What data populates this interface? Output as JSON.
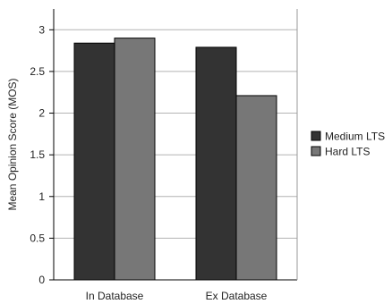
{
  "chart_data": {
    "type": "bar",
    "title": "",
    "xlabel": "",
    "ylabel": "Mean Opinion Score (MOS)",
    "categories": [
      "In Database",
      "Ex Database"
    ],
    "series": [
      {
        "name": "Medium LTS",
        "values": [
          2.84,
          2.79
        ],
        "color": "#333333"
      },
      {
        "name": "Hard LTS",
        "values": [
          2.9,
          2.21
        ],
        "color": "#777777"
      }
    ],
    "ylim": [
      0,
      3.25
    ],
    "yticks": [
      0,
      0.5,
      1,
      1.5,
      2,
      2.5,
      3
    ],
    "ytick_labels": [
      "0",
      "0.5",
      "1",
      "1.5",
      "2",
      "2.5",
      "3"
    ],
    "grid": true,
    "legend": "right"
  }
}
